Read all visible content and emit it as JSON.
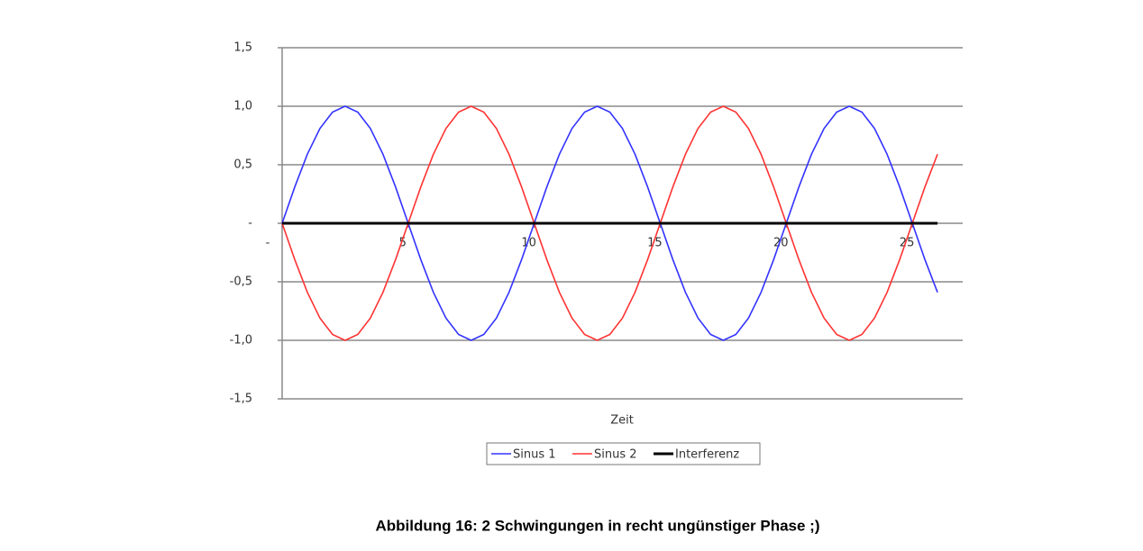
{
  "chart_data": {
    "type": "line",
    "x_label": "Zeit",
    "caption": "Abbildung 16: 2 Schwingungen in recht ungünstiger Phase ;)",
    "x": [
      0,
      0.5,
      1,
      1.5,
      2,
      2.5,
      3,
      3.5,
      4,
      4.5,
      5,
      5.5,
      6,
      6.5,
      7,
      7.5,
      8,
      8.5,
      9,
      9.5,
      10,
      10.5,
      11,
      11.5,
      12,
      12.5,
      13,
      13.5,
      14,
      14.5,
      15,
      15.5,
      16,
      16.5,
      17,
      17.5,
      18,
      18.5,
      19,
      19.5,
      20,
      20.5,
      21,
      21.5,
      22,
      22.5,
      23,
      23.5,
      24,
      24.5,
      25,
      25.5,
      26
    ],
    "series": [
      {
        "name": "Sinus 1",
        "color": "#3333ff",
        "values": [
          0,
          0.31,
          0.59,
          0.81,
          0.95,
          1,
          0.95,
          0.81,
          0.59,
          0.31,
          0,
          -0.31,
          -0.59,
          -0.81,
          -0.95,
          -1,
          -0.95,
          -0.81,
          -0.59,
          -0.31,
          0,
          0.31,
          0.59,
          0.81,
          0.95,
          1,
          0.95,
          0.81,
          0.59,
          0.31,
          0,
          -0.31,
          -0.59,
          -0.81,
          -0.95,
          -1,
          -0.95,
          -0.81,
          -0.59,
          -0.31,
          0,
          0.31,
          0.59,
          0.81,
          0.95,
          1,
          0.95,
          0.81,
          0.59,
          0.31,
          0,
          -0.31,
          -0.59
        ]
      },
      {
        "name": "Sinus 2",
        "color": "#ff3333",
        "values": [
          0,
          -0.31,
          -0.59,
          -0.81,
          -0.95,
          -1,
          -0.95,
          -0.81,
          -0.59,
          -0.31,
          0,
          0.31,
          0.59,
          0.81,
          0.95,
          1,
          0.95,
          0.81,
          0.59,
          0.31,
          0,
          -0.31,
          -0.59,
          -0.81,
          -0.95,
          -1,
          -0.95,
          -0.81,
          -0.59,
          -0.31,
          0,
          0.31,
          0.59,
          0.81,
          0.95,
          1,
          0.95,
          0.81,
          0.59,
          0.31,
          0,
          -0.31,
          -0.59,
          -0.81,
          -0.95,
          -1,
          -0.95,
          -0.81,
          -0.59,
          -0.31,
          0,
          0.31,
          0.59
        ]
      },
      {
        "name": "Interferenz",
        "color": "#000000",
        "values": [
          0,
          0,
          0,
          0,
          0,
          0,
          0,
          0,
          0,
          0,
          0,
          0,
          0,
          0,
          0,
          0,
          0,
          0,
          0,
          0,
          0,
          0,
          0,
          0,
          0,
          0,
          0,
          0,
          0,
          0,
          0,
          0,
          0,
          0,
          0,
          0,
          0,
          0,
          0,
          0,
          0,
          0,
          0,
          0,
          0,
          0,
          0,
          0,
          0,
          0,
          0,
          0,
          0
        ]
      }
    ],
    "xlim": [
      0,
      27
    ],
    "xticks": [
      {
        "value": 0,
        "label": "-"
      },
      5,
      10,
      15,
      20,
      25
    ],
    "ylim": [
      -1.5,
      1.5
    ],
    "yticks": [
      {
        "value": 1.5,
        "label": "1,5"
      },
      {
        "value": 1,
        "label": "1,0"
      },
      {
        "value": 0.5,
        "label": "0,5"
      },
      {
        "value": 0,
        "label": "-"
      },
      {
        "value": -0.5,
        "label": "-0,5"
      },
      {
        "value": -1,
        "label": "-1,0"
      },
      {
        "value": -1.5,
        "label": "-1,5"
      }
    ],
    "grid": true,
    "legend": "bottom"
  }
}
